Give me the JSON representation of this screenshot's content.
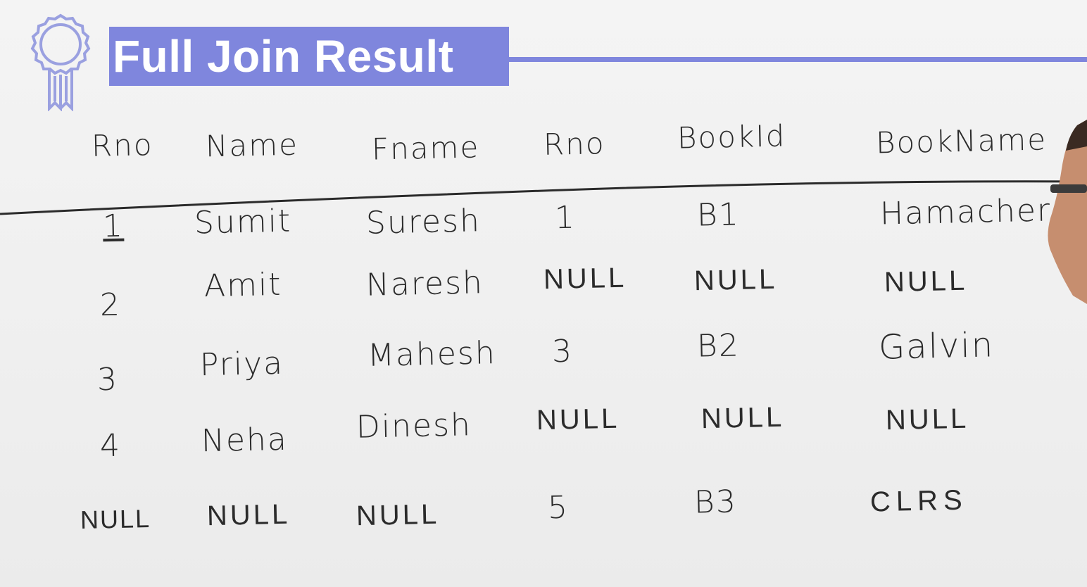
{
  "title": "Full Join Result",
  "icons": {
    "badge": "award-ribbon-icon"
  },
  "colors": {
    "accent": "#7f86dd",
    "ink": "#2b2b2b"
  },
  "table": {
    "headers": [
      "Rno",
      "Name",
      "Fname",
      "Rno",
      "BookId",
      "BookName"
    ],
    "rows": [
      [
        "1",
        "Sumit",
        "Suresh",
        "1",
        "B1",
        "Hamacher"
      ],
      [
        "2",
        "Amit",
        "Naresh",
        "NULL",
        "NULL",
        "NULL"
      ],
      [
        "3",
        "Priya",
        "Mahesh",
        "3",
        "B2",
        "Galvin"
      ],
      [
        "4",
        "Neha",
        "Dinesh",
        "NULL",
        "NULL",
        "NULL"
      ],
      [
        "NULL",
        "NULL",
        "NULL",
        "5",
        "B3",
        "CLRS"
      ]
    ]
  }
}
